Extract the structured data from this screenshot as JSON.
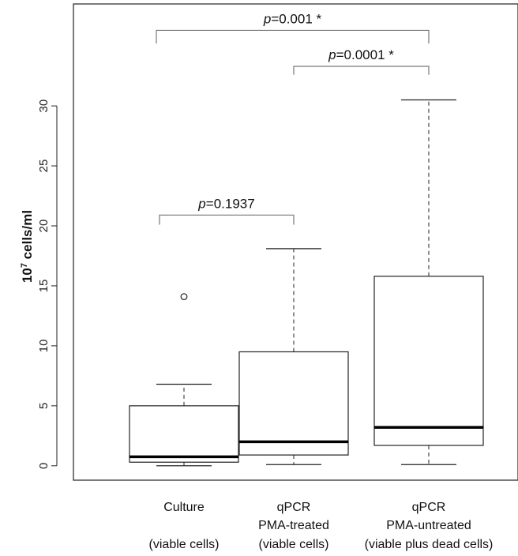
{
  "chart_data": {
    "type": "box",
    "ylabel_base": "10",
    "ylabel_exp": "7",
    "ylabel_rest": " cells/ml",
    "yticks": [
      0,
      5,
      10,
      15,
      20,
      25,
      30
    ],
    "ylim": [
      -1.2,
      38.5
    ],
    "groups": [
      {
        "label_lines": [
          "Culture",
          "",
          "(viable cells)"
        ],
        "min": 0.0,
        "q1": 0.3,
        "median": 0.75,
        "q3": 5.0,
        "max": 6.8,
        "outliers": [
          14.1
        ]
      },
      {
        "label_lines": [
          "qPCR",
          "PMA-treated",
          "(viable cells)"
        ],
        "min": 0.1,
        "q1": 0.9,
        "median": 2.0,
        "q3": 9.5,
        "max": 18.1,
        "outliers": []
      },
      {
        "label_lines": [
          "qPCR",
          "PMA-untreated",
          "(viable plus dead cells)"
        ],
        "min": 0.1,
        "q1": 1.7,
        "median": 3.2,
        "q3": 15.8,
        "max": 30.5,
        "outliers": []
      }
    ],
    "comparisons": [
      {
        "from": 0,
        "to": 1,
        "y_low": 20.1,
        "y_high": 20.9,
        "p_symbol": "p",
        "p_text": "=0.1937"
      },
      {
        "from": 1,
        "to": 2,
        "y_low": 32.6,
        "y_high": 33.3,
        "p_symbol": "p",
        "p_text": "=0.0001 *"
      },
      {
        "from": 0,
        "to": 2,
        "y_low": 35.2,
        "y_high": 36.3,
        "p_symbol": "p",
        "p_text": "=0.001 *"
      }
    ]
  }
}
